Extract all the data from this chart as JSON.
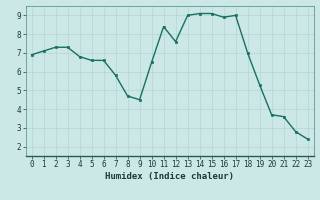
{
  "x": [
    0,
    1,
    2,
    3,
    4,
    5,
    6,
    7,
    8,
    9,
    10,
    11,
    12,
    13,
    14,
    15,
    16,
    17,
    18,
    19,
    20,
    21,
    22,
    23
  ],
  "y": [
    6.9,
    7.1,
    7.3,
    7.3,
    6.8,
    6.6,
    6.6,
    5.8,
    4.7,
    4.5,
    6.5,
    8.4,
    7.6,
    9.0,
    9.1,
    9.1,
    8.9,
    9.0,
    7.0,
    5.3,
    3.7,
    3.6,
    2.8,
    2.4
  ],
  "xlabel": "Humidex (Indice chaleur)",
  "xlim": [
    -0.5,
    23.5
  ],
  "ylim": [
    1.5,
    9.5
  ],
  "yticks": [
    2,
    3,
    4,
    5,
    6,
    7,
    8,
    9
  ],
  "xticks": [
    0,
    1,
    2,
    3,
    4,
    5,
    6,
    7,
    8,
    9,
    10,
    11,
    12,
    13,
    14,
    15,
    16,
    17,
    18,
    19,
    20,
    21,
    22,
    23
  ],
  "line_color": "#1a6e62",
  "marker_color": "#1a6e62",
  "bg_color": "#cce8e6",
  "grid_color": "#b8d8d6",
  "axes_bg": "#cce8e6",
  "font_color": "#1a3a38",
  "tick_label_size": 5.5,
  "xlabel_size": 6.5,
  "label_font": "monospace"
}
